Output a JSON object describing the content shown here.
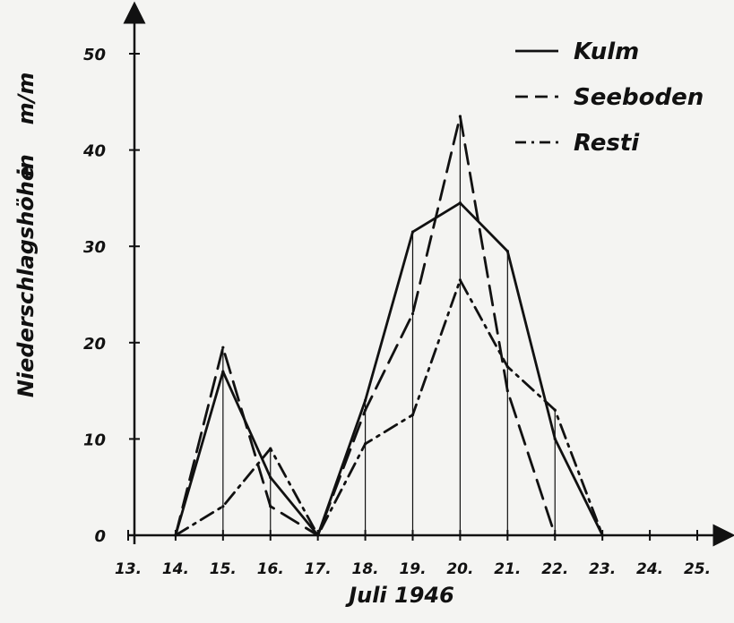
{
  "chart_data": {
    "type": "line",
    "title": "",
    "xlabel": "Juli 1946",
    "ylabel_main": "Niederschlagshöhe",
    "ylabel_in": "in",
    "ylabel_unit": "m/m",
    "x_ticks": [
      "13.",
      "14.",
      "15.",
      "16.",
      "17.",
      "18.",
      "19.",
      "20.",
      "21.",
      "22.",
      "23.",
      "24.",
      "25."
    ],
    "y_ticks": [
      "0",
      "10",
      "20",
      "30",
      "40",
      "50"
    ],
    "xlim": [
      13,
      25
    ],
    "ylim": [
      0,
      50
    ],
    "legend_position": "top-right",
    "drop_lines_x": [
      15,
      16,
      18,
      19,
      20,
      21,
      22
    ],
    "series": [
      {
        "name": "Kulm",
        "style": "solid",
        "x": [
          14,
          15,
          16,
          17,
          18,
          19,
          20,
          21,
          22,
          23
        ],
        "y": [
          0,
          17,
          6,
          0,
          14,
          31.5,
          34.5,
          29.5,
          10,
          0
        ]
      },
      {
        "name": "Seeboden",
        "style": "dashed",
        "x": [
          14,
          15,
          16,
          17,
          18,
          19,
          20,
          21,
          22
        ],
        "y": [
          0,
          19.5,
          3,
          0,
          13,
          23,
          43.5,
          15,
          0
        ]
      },
      {
        "name": "Resti",
        "style": "dashdot",
        "x": [
          14,
          15,
          16,
          17,
          18,
          19,
          20,
          21,
          22,
          23
        ],
        "y": [
          0,
          3,
          9,
          0,
          9.5,
          12.5,
          26.5,
          17.5,
          13,
          0
        ]
      }
    ]
  }
}
